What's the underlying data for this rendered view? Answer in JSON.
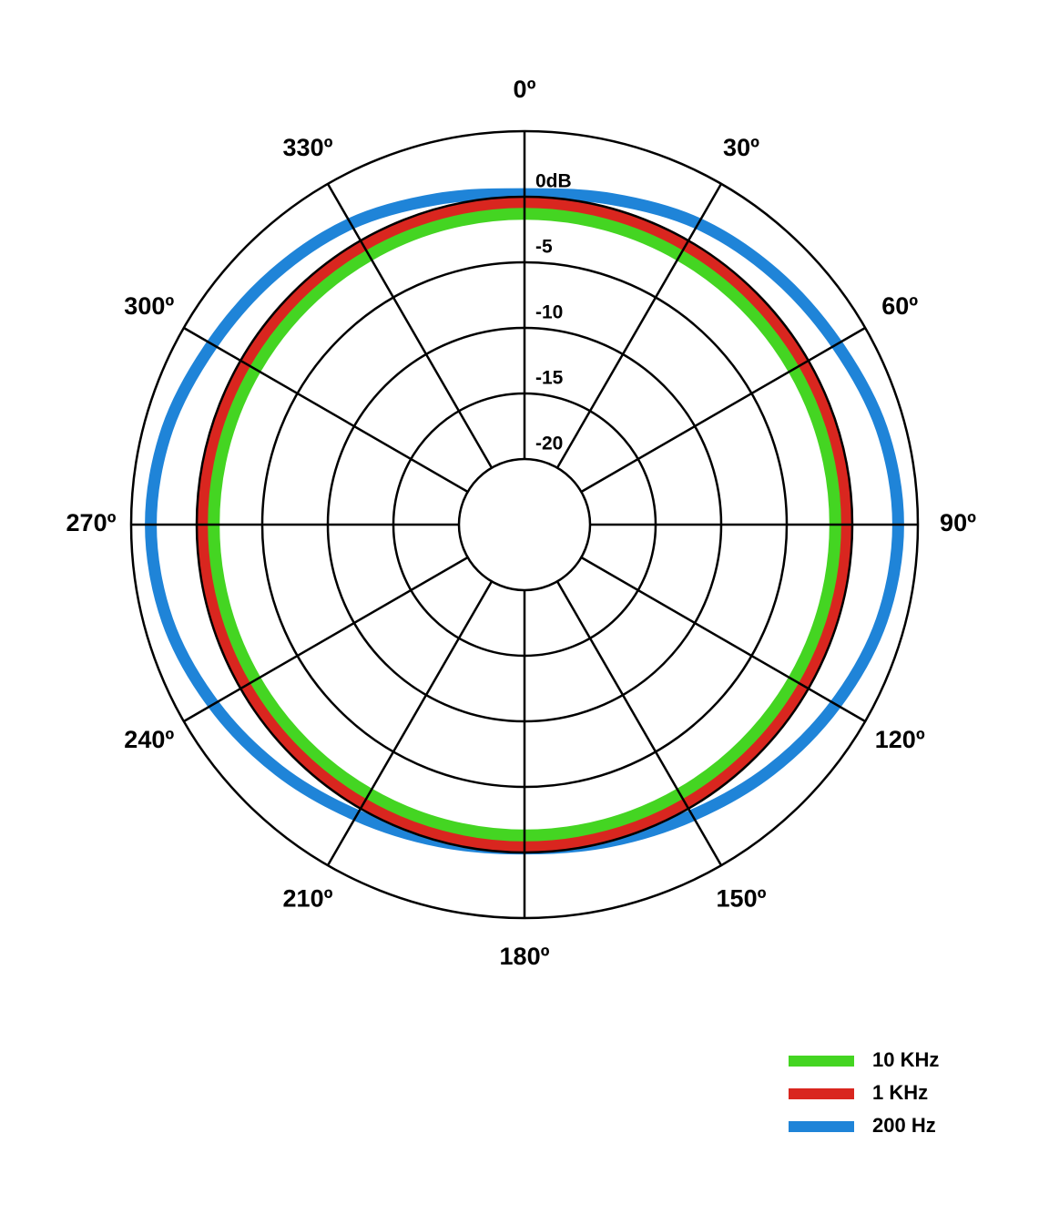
{
  "chart_data": {
    "type": "polar",
    "rlim": [
      -25,
      5
    ],
    "rticks": [
      {
        "value": 0,
        "label": "0dB"
      },
      -5,
      -10,
      -15,
      -20
    ],
    "thetaticks": [
      {
        "value": 0,
        "label": "0º"
      },
      {
        "value": 30,
        "label": "30º"
      },
      {
        "value": 60,
        "label": "60º"
      },
      {
        "value": 90,
        "label": "90º"
      },
      {
        "value": 120,
        "label": "120º"
      },
      {
        "value": 150,
        "label": "150º"
      },
      {
        "value": 180,
        "label": "180º"
      },
      {
        "value": 210,
        "label": "210º"
      },
      {
        "value": 240,
        "label": "240º"
      },
      {
        "value": 270,
        "label": "270º"
      },
      {
        "value": 300,
        "label": "300º"
      },
      {
        "value": 330,
        "label": "330º"
      }
    ],
    "theta": [
      0,
      15,
      30,
      45,
      60,
      75,
      90,
      105,
      120,
      135,
      150,
      165,
      180,
      195,
      210,
      225,
      240,
      255,
      270,
      285,
      300,
      315,
      330,
      345
    ],
    "series": [
      {
        "name": "200 Hz",
        "color": "#1f84d8",
        "values": [
          0.2,
          0.7,
          1.5,
          2.0,
          2.5,
          3.2,
          3.5,
          3.2,
          2.4,
          1.5,
          0.6,
          0.0,
          -0.3,
          0.0,
          0.6,
          1.5,
          2.4,
          3.2,
          3.5,
          3.2,
          2.5,
          2.0,
          1.5,
          0.7
        ]
      },
      {
        "name": "1 KHz",
        "color": "#d9261f",
        "values": [
          -0.5,
          -0.5,
          -0.5,
          -0.5,
          -0.5,
          -0.5,
          -0.5,
          -0.5,
          -0.5,
          -0.5,
          -0.5,
          -0.5,
          -0.5,
          -0.5,
          -0.5,
          -0.5,
          -0.5,
          -0.5,
          -0.5,
          -0.5,
          -0.5,
          -0.5,
          -0.5,
          -0.5
        ]
      },
      {
        "name": "10 KHz",
        "color": "#44d522",
        "values": [
          -1.3,
          -1.3,
          -1.3,
          -1.3,
          -1.3,
          -1.3,
          -1.3,
          -1.3,
          -1.3,
          -1.3,
          -1.3,
          -1.3,
          -1.3,
          -1.3,
          -1.3,
          -1.3,
          -1.3,
          -1.3,
          -1.3,
          -1.3,
          -1.3,
          -1.3,
          -1.3,
          -1.3
        ]
      }
    ],
    "legend": "bottom-right"
  }
}
